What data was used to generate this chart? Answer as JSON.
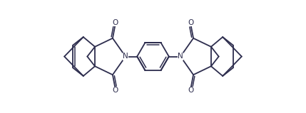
{
  "bg_color": "#ffffff",
  "line_color": "#2d2d4e",
  "line_width": 1.3,
  "figsize": [
    4.29,
    1.59
  ],
  "dpi": 100,
  "xlim": [
    0,
    10
  ],
  "ylim": [
    0,
    3.71
  ]
}
